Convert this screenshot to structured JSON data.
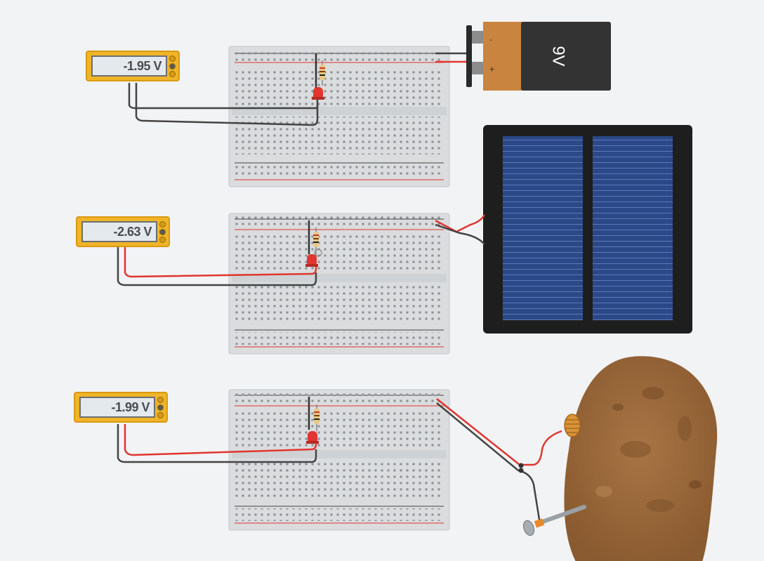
{
  "multimeters": [
    {
      "reading": "-1.95 V"
    },
    {
      "reading": "-2.63 V"
    },
    {
      "reading": "-1.99 V"
    }
  ],
  "battery": {
    "label": "9V",
    "minus": "-",
    "plus": "+"
  },
  "components": {
    "breadboards": [
      "breadboard-top",
      "breadboard-middle",
      "breadboard-bottom"
    ],
    "power_sources": [
      "9v-battery",
      "solar-panel",
      "potato-battery"
    ]
  },
  "colors": {
    "background": "#f2f3f5",
    "wire_red": "#e0362f",
    "wire_black": "#444444",
    "multimeter": "#f0b428",
    "battery_copper": "#c9843f",
    "battery_black": "#333333",
    "solar_cell": "#2c4a86",
    "potato": "#9a6a3d"
  }
}
